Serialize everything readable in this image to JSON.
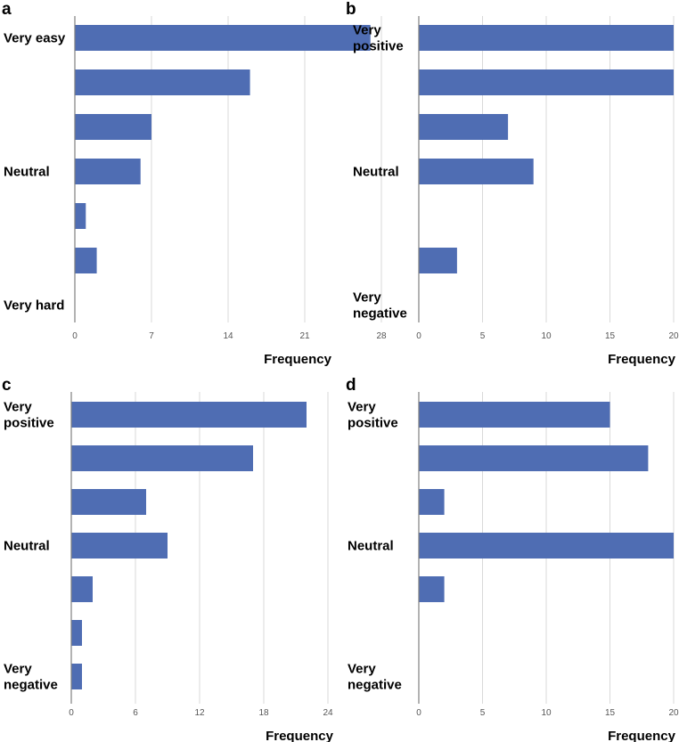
{
  "chart_data": [
    {
      "type": "bar",
      "panel": "a",
      "orientation": "horizontal",
      "values": [
        27,
        16,
        7,
        6,
        1,
        2,
        0
      ],
      "category_labels": [
        [
          "Very easy"
        ],
        [],
        [],
        [
          "Neutral"
        ],
        [],
        [],
        [
          "Very hard"
        ]
      ],
      "ticks": [
        "0",
        "7",
        "14",
        "21",
        "28"
      ],
      "xlim": [
        0,
        28
      ],
      "xlabel": "Frequency",
      "grid": true,
      "color": "#4f6db3"
    },
    {
      "type": "bar",
      "panel": "b",
      "orientation": "horizontal",
      "values": [
        20,
        20,
        7,
        9,
        0,
        3,
        0
      ],
      "category_labels": [
        [
          "Very",
          "positive"
        ],
        [],
        [],
        [
          "Neutral"
        ],
        [],
        [],
        [
          "Very",
          "negative"
        ]
      ],
      "ticks": [
        "0",
        "5",
        "10",
        "15",
        "20"
      ],
      "xlim": [
        0,
        20
      ],
      "xlabel": "Frequency",
      "grid": true,
      "color": "#4f6db3"
    },
    {
      "type": "bar",
      "panel": "c",
      "orientation": "horizontal",
      "values": [
        22,
        17,
        7,
        9,
        2,
        1,
        1
      ],
      "category_labels": [
        [
          "Very",
          "positive"
        ],
        [],
        [],
        [
          "Neutral"
        ],
        [],
        [],
        [
          "Very",
          "negative"
        ]
      ],
      "ticks": [
        "0",
        "6",
        "12",
        "18",
        "24"
      ],
      "xlim": [
        0,
        24
      ],
      "xlabel": "Frequency",
      "grid": true,
      "color": "#4f6db3"
    },
    {
      "type": "bar",
      "panel": "d",
      "orientation": "horizontal",
      "values": [
        15,
        18,
        2,
        20,
        2,
        0,
        0
      ],
      "category_labels": [
        [
          "Very",
          "positive"
        ],
        [],
        [],
        [
          "Neutral"
        ],
        [],
        [],
        [
          "Very",
          "negative"
        ]
      ],
      "ticks": [
        "0",
        "5",
        "10",
        "15",
        "20"
      ],
      "xlim": [
        0,
        20
      ],
      "xlabel": "Frequency",
      "grid": true,
      "color": "#4f6db3"
    }
  ]
}
